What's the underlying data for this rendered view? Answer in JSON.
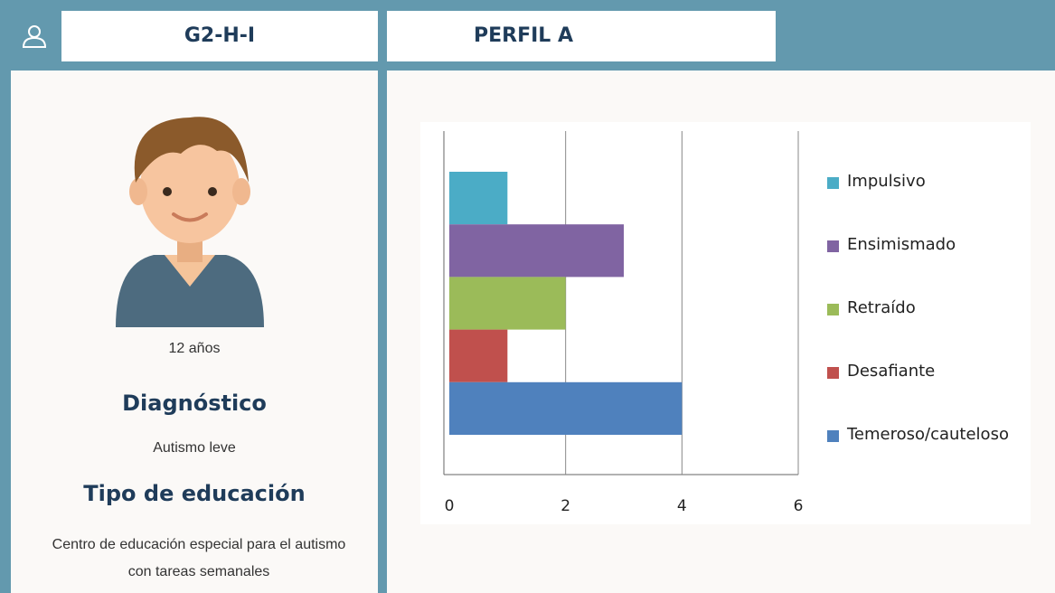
{
  "header": {
    "user_code": "G2-H-I",
    "profile": "PERFIL A"
  },
  "profile": {
    "age": "12 años",
    "diagnosis_heading": "Diagnóstico",
    "diagnosis": "Autismo leve",
    "education_heading": "Tipo de educación",
    "education": "Centro de educación especial para el autismo con tareas semanales"
  },
  "chart_data": {
    "type": "bar",
    "orientation": "horizontal",
    "series": [
      {
        "name": "Impulsivo",
        "color": "#4bacc6",
        "values": [
          1
        ]
      },
      {
        "name": "Ensimismado",
        "color": "#8064a2",
        "values": [
          3
        ]
      },
      {
        "name": "Retraído",
        "color": "#9bbb59",
        "values": [
          2
        ]
      },
      {
        "name": "Desafiante",
        "color": "#c0504d",
        "values": [
          1
        ]
      },
      {
        "name": "Temeroso/cauteloso",
        "color": "#4f81bd",
        "values": [
          4
        ]
      }
    ],
    "xlim": [
      0,
      6
    ],
    "xticks": [
      0,
      2,
      4,
      6
    ],
    "grid": true,
    "legend": "right"
  }
}
